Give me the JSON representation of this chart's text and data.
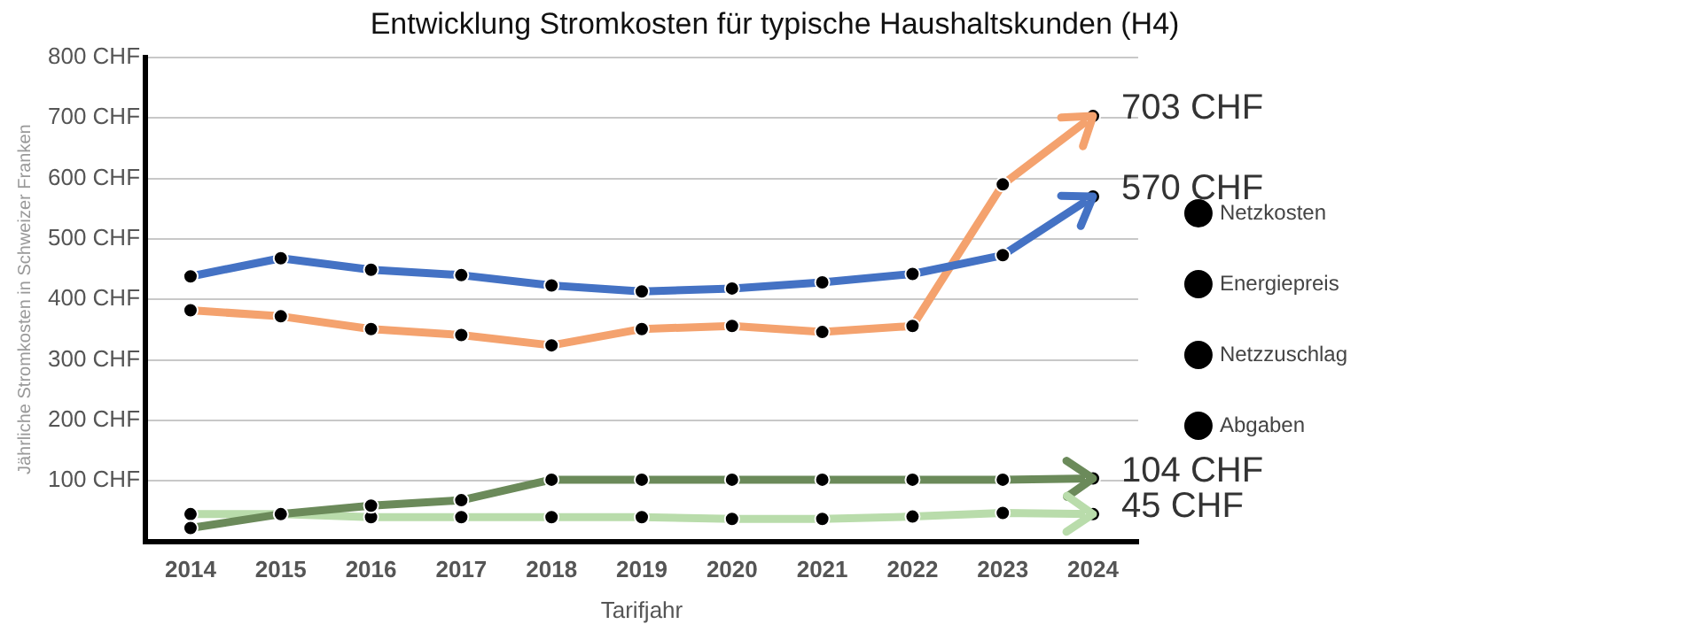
{
  "chart_data": {
    "type": "line",
    "title": "Entwicklung Stromkosten für typische Haushaltskunden (H4)",
    "xlabel": "Tarifjahr",
    "ylabel": "Jährliche Stromkosten in Schweizer Franken",
    "categories": [
      "2014",
      "2015",
      "2016",
      "2017",
      "2018",
      "2019",
      "2020",
      "2021",
      "2022",
      "2023",
      "2024"
    ],
    "series": [
      {
        "name": "Netzkosten",
        "color": "#4472c4",
        "values": [
          438,
          468,
          449,
          440,
          423,
          413,
          418,
          428,
          442,
          473,
          570
        ],
        "value_labels": [
          null,
          null,
          null,
          null,
          null,
          null,
          null,
          null,
          null,
          null,
          "570 CHF"
        ]
      },
      {
        "name": "Energiepreis",
        "color": "#f4a26e",
        "values": [
          382,
          372,
          351,
          341,
          324,
          351,
          356,
          346,
          356,
          590,
          703
        ],
        "value_labels": [
          null,
          null,
          null,
          null,
          null,
          null,
          null,
          null,
          null,
          null,
          "703 CHF"
        ]
      },
      {
        "name": "Netzzuschlag",
        "color": "#6b8a5a",
        "values": [
          22,
          45,
          59,
          68,
          102,
          102,
          102,
          102,
          102,
          102,
          104
        ],
        "value_labels": [
          null,
          null,
          null,
          null,
          null,
          null,
          null,
          null,
          null,
          null,
          "104 CHF"
        ]
      },
      {
        "name": "Abgaben",
        "color": "#b9dcab",
        "values": [
          45,
          45,
          40,
          40,
          40,
          40,
          37,
          37,
          41,
          47,
          45
        ],
        "value_labels": [
          null,
          null,
          null,
          null,
          null,
          null,
          null,
          null,
          null,
          null,
          "45 CHF"
        ]
      }
    ],
    "ylim": [
      0,
      800
    ],
    "yticks": [
      {
        "value": 0,
        "label": null
      },
      {
        "value": 100,
        "label": "100 CHF"
      },
      {
        "value": 200,
        "label": "200 CHF"
      },
      {
        "value": 300,
        "label": "300 CHF"
      },
      {
        "value": 400,
        "label": "400 CHF"
      },
      {
        "value": 500,
        "label": "500 CHF"
      },
      {
        "value": 600,
        "label": "600 CHF"
      },
      {
        "value": 700,
        "label": "700 CHF"
      },
      {
        "value": 800,
        "label": "800 CHF"
      }
    ],
    "grid": "y",
    "legend": "right",
    "marker": "circle",
    "line_style": "solid"
  }
}
